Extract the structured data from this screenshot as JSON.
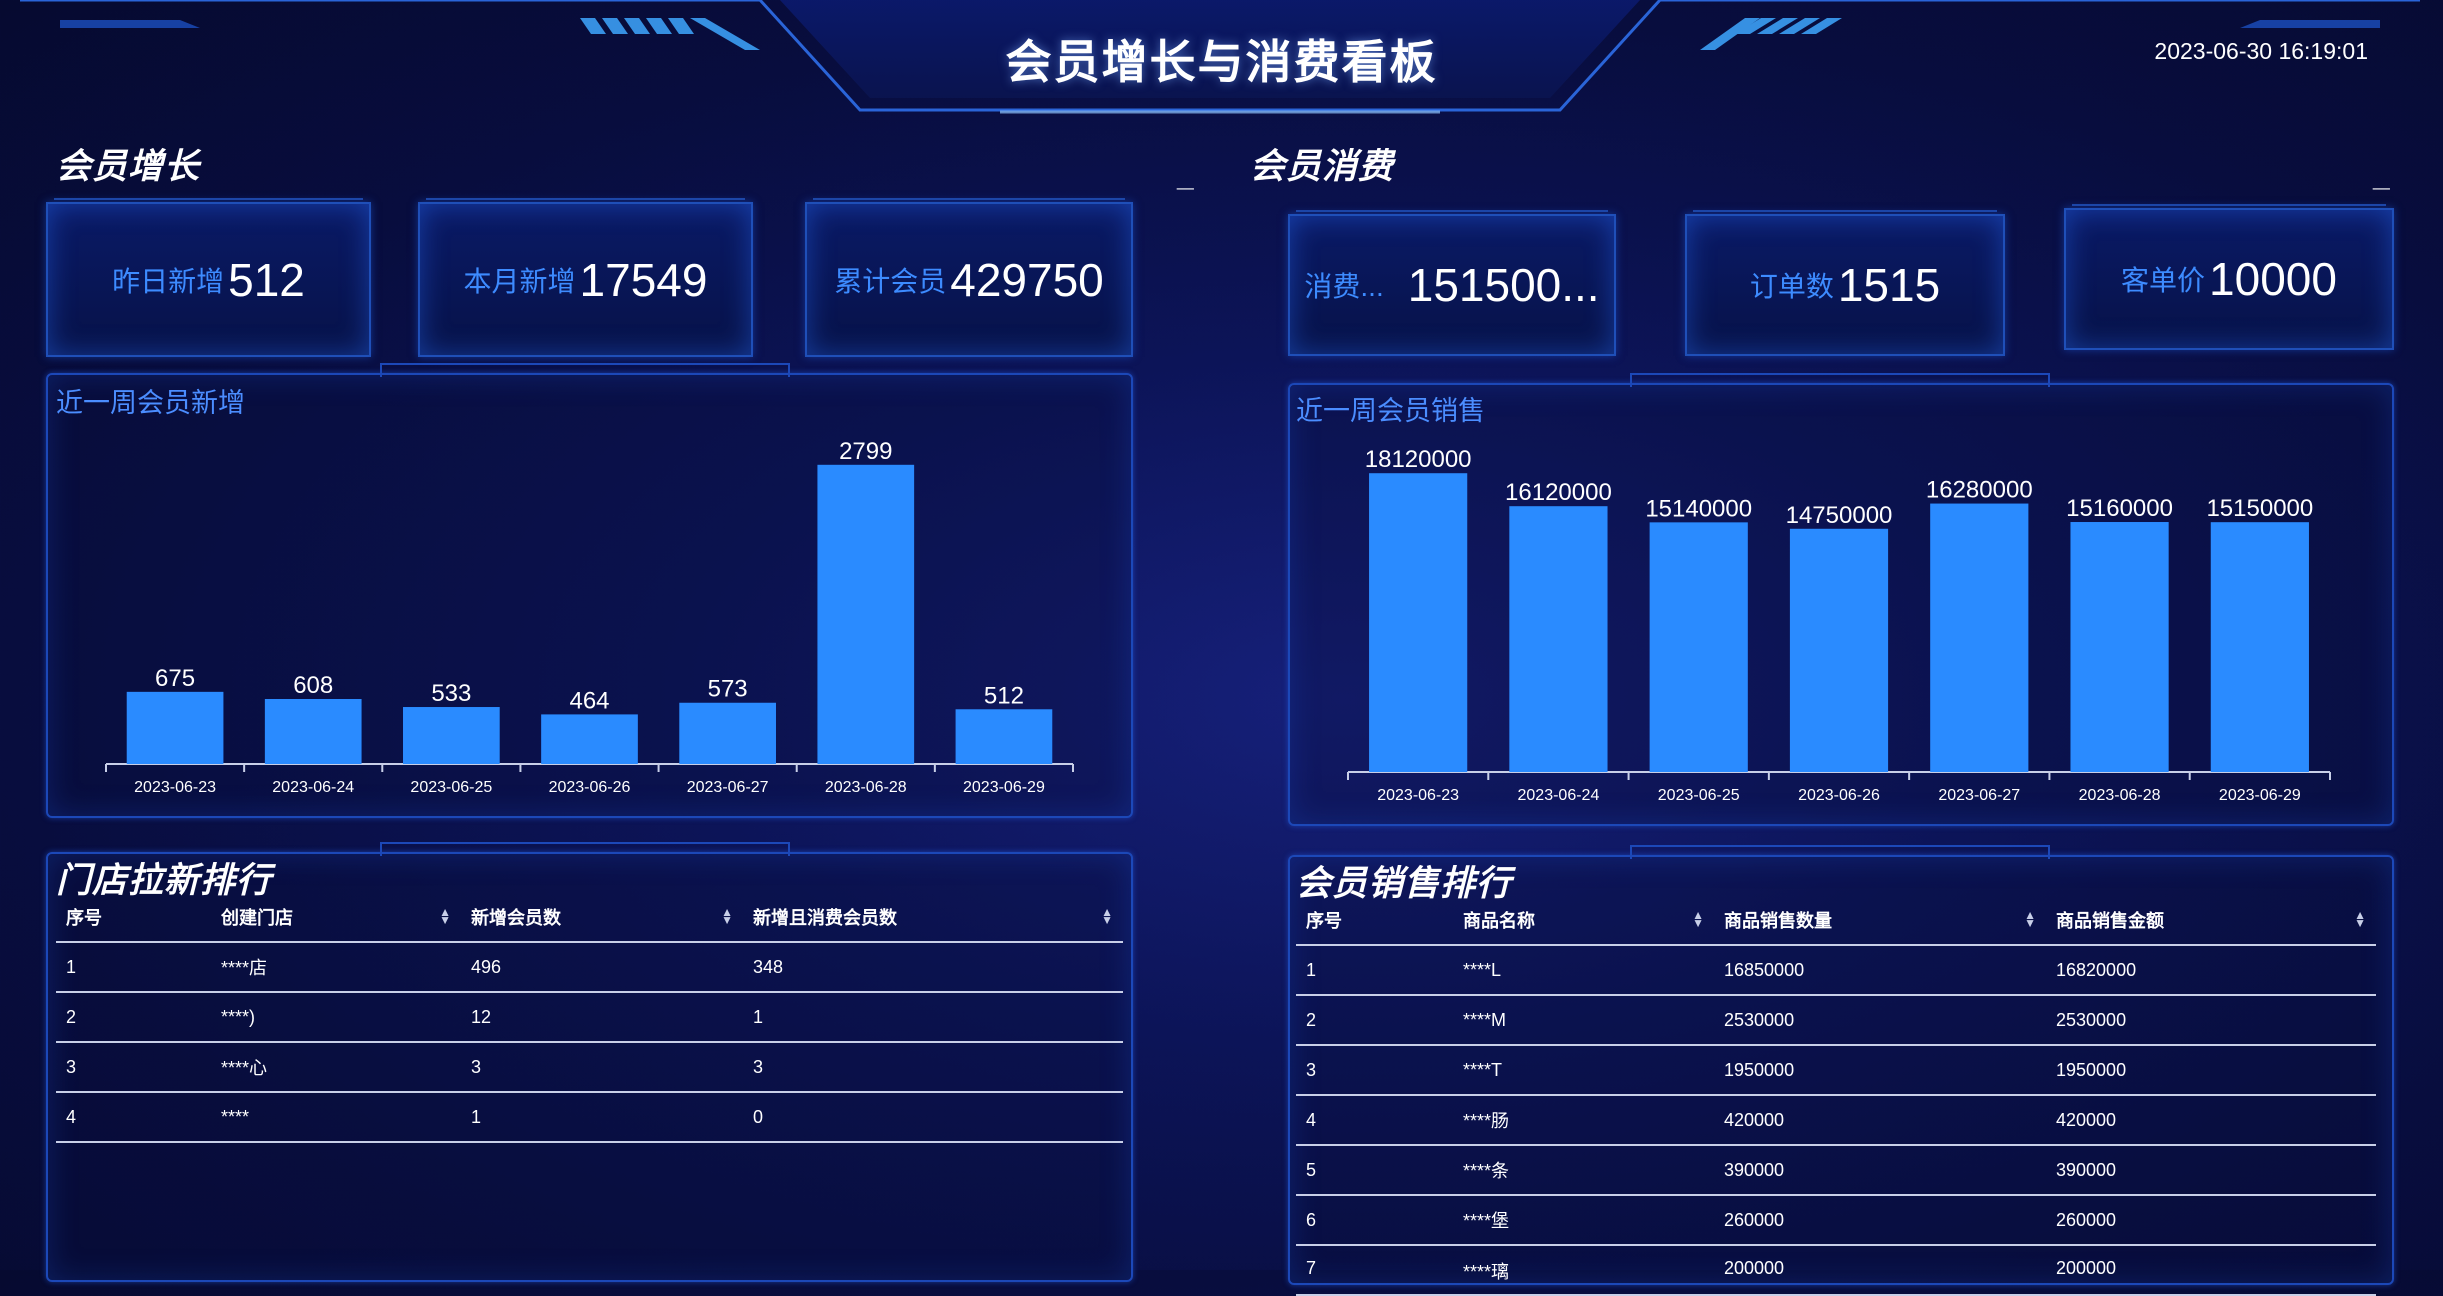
{
  "header": {
    "title": "会员增长与消费看板",
    "datetime": "2023-06-30 16:19:01"
  },
  "growth": {
    "title": "会员增长",
    "minimize": "_",
    "stats": [
      {
        "label": "昨日新增",
        "value": "512"
      },
      {
        "label": "本月新增",
        "value": "17549"
      },
      {
        "label": "累计会员",
        "value": "429750"
      }
    ],
    "chart_title": "近一周会员新增",
    "table_title": "门店拉新排行",
    "table": {
      "headers": [
        "序号",
        "创建门店",
        "新增会员数",
        "新增且消费会员数"
      ],
      "rows": [
        [
          "1",
          "****店",
          "496",
          "348"
        ],
        [
          "2",
          "****)",
          "12",
          "1"
        ],
        [
          "3",
          "****心",
          "3",
          "3"
        ],
        [
          "4",
          "****",
          "1",
          "0"
        ]
      ]
    }
  },
  "consume": {
    "title": "会员消费",
    "minimize": "_",
    "stats": [
      {
        "label": "消费...",
        "value": "151500..."
      },
      {
        "label": "订单数",
        "value": "1515"
      },
      {
        "label": "客单价",
        "value": "10000"
      }
    ],
    "chart_title": "近一周会员销售",
    "table_title": "会员销售排行",
    "table": {
      "headers": [
        "序号",
        "商品名称",
        "商品销售数量",
        "商品销售金额"
      ],
      "rows": [
        [
          "1",
          "****L",
          "16850000",
          "16820000"
        ],
        [
          "2",
          "****M",
          "2530000",
          "2530000"
        ],
        [
          "3",
          "****T",
          "1950000",
          "1950000"
        ],
        [
          "4",
          "****肠",
          "420000",
          "420000"
        ],
        [
          "5",
          "****条",
          "390000",
          "390000"
        ],
        [
          "6",
          "****堡",
          "260000",
          "260000"
        ],
        [
          "7",
          "****璃",
          "200000",
          "200000"
        ]
      ]
    }
  },
  "colors": {
    "bar": "#2a8bff",
    "accent": "#3d8bff",
    "border": "#1c48b8"
  },
  "chart_data": [
    {
      "type": "bar",
      "title": "近一周会员新增",
      "categories": [
        "2023-06-23",
        "2023-06-24",
        "2023-06-25",
        "2023-06-26",
        "2023-06-27",
        "2023-06-28",
        "2023-06-29"
      ],
      "values": [
        675,
        608,
        533,
        464,
        573,
        2799,
        512
      ],
      "ylim": [
        0,
        2900
      ],
      "grid": false,
      "data_labels": true
    },
    {
      "type": "bar",
      "title": "近一周会员销售",
      "categories": [
        "2023-06-23",
        "2023-06-24",
        "2023-06-25",
        "2023-06-26",
        "2023-06-27",
        "2023-06-28",
        "2023-06-29"
      ],
      "values": [
        18120000,
        16120000,
        15140000,
        14750000,
        16280000,
        15160000,
        15150000
      ],
      "ylim": [
        0,
        18800000
      ],
      "grid": false,
      "data_labels": true
    }
  ]
}
